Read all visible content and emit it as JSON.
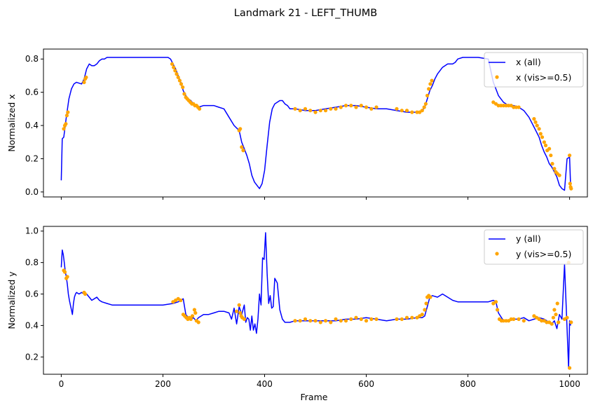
{
  "chart_data": {
    "title": "Landmark 21 - LEFT_THUMB",
    "type": "line",
    "panels": [
      {
        "ylabel": "Normalized x",
        "xlim": [
          -35,
          1035
        ],
        "ylim": [
          -0.03,
          0.86
        ],
        "yticks": [
          0.0,
          0.2,
          0.4,
          0.6,
          0.8
        ],
        "ytick_labels": [
          "0.0",
          "0.2",
          "0.4",
          "0.6",
          "0.8"
        ],
        "xticks": [
          0,
          200,
          400,
          600,
          800,
          1000
        ],
        "legend": {
          "placement": "top-right",
          "entries": [
            "x (all)",
            "x (vis>=0.5)"
          ]
        },
        "series_all": {
          "name": "x (all)",
          "color": "#0000ff",
          "x": [
            0,
            2,
            5,
            10,
            15,
            20,
            25,
            30,
            40,
            45,
            50,
            55,
            60,
            65,
            70,
            75,
            80,
            85,
            90,
            100,
            120,
            150,
            180,
            210,
            215,
            220,
            225,
            230,
            235,
            240,
            245,
            250,
            255,
            260,
            265,
            270,
            280,
            290,
            300,
            310,
            320,
            330,
            340,
            350,
            355,
            360,
            365,
            370,
            375,
            380,
            385,
            390,
            395,
            400,
            405,
            410,
            415,
            420,
            425,
            430,
            435,
            440,
            445,
            450,
            460,
            480,
            500,
            520,
            540,
            560,
            580,
            600,
            620,
            640,
            660,
            680,
            700,
            710,
            715,
            720,
            725,
            730,
            735,
            740,
            745,
            750,
            755,
            760,
            765,
            770,
            775,
            780,
            790,
            800,
            820,
            840,
            845,
            850,
            855,
            860,
            870,
            880,
            890,
            900,
            910,
            920,
            930,
            940,
            945,
            950,
            955,
            960,
            965,
            970,
            975,
            980,
            985,
            990,
            995,
            1000,
            1002
          ],
          "y": [
            0.07,
            0.32,
            0.33,
            0.45,
            0.56,
            0.62,
            0.65,
            0.66,
            0.65,
            0.68,
            0.74,
            0.77,
            0.76,
            0.76,
            0.77,
            0.79,
            0.8,
            0.8,
            0.81,
            0.81,
            0.81,
            0.81,
            0.81,
            0.81,
            0.8,
            0.77,
            0.74,
            0.7,
            0.66,
            0.61,
            0.58,
            0.56,
            0.55,
            0.53,
            0.52,
            0.51,
            0.52,
            0.52,
            0.52,
            0.51,
            0.5,
            0.45,
            0.4,
            0.37,
            0.3,
            0.26,
            0.22,
            0.17,
            0.1,
            0.06,
            0.04,
            0.02,
            0.05,
            0.13,
            0.28,
            0.42,
            0.5,
            0.53,
            0.54,
            0.55,
            0.55,
            0.53,
            0.52,
            0.5,
            0.5,
            0.49,
            0.49,
            0.5,
            0.51,
            0.52,
            0.52,
            0.51,
            0.5,
            0.5,
            0.49,
            0.48,
            0.48,
            0.49,
            0.51,
            0.56,
            0.61,
            0.64,
            0.68,
            0.71,
            0.73,
            0.75,
            0.76,
            0.77,
            0.77,
            0.77,
            0.78,
            0.8,
            0.81,
            0.81,
            0.81,
            0.8,
            0.73,
            0.66,
            0.62,
            0.58,
            0.54,
            0.52,
            0.52,
            0.51,
            0.49,
            0.45,
            0.39,
            0.33,
            0.28,
            0.24,
            0.21,
            0.17,
            0.15,
            0.12,
            0.09,
            0.04,
            0.02,
            0.01,
            0.2,
            0.21,
            0.03
          ]
        },
        "series_vis": {
          "name": "x (vis>=0.5)",
          "color": "#ffa500",
          "x": [
            5,
            7,
            9,
            11,
            13,
            45,
            47,
            49,
            218,
            221,
            224,
            227,
            230,
            233,
            236,
            239,
            242,
            245,
            248,
            251,
            254,
            257,
            260,
            263,
            266,
            269,
            272,
            350,
            352,
            355,
            358,
            460,
            470,
            480,
            490,
            500,
            510,
            520,
            530,
            540,
            550,
            560,
            570,
            580,
            590,
            600,
            610,
            620,
            660,
            670,
            680,
            690,
            700,
            705,
            710,
            714,
            717,
            720,
            723,
            726,
            729,
            850,
            855,
            860,
            865,
            870,
            875,
            880,
            885,
            890,
            895,
            900,
            930,
            933,
            936,
            940,
            943,
            946,
            950,
            953,
            956,
            960,
            963,
            966,
            970,
            973,
            976,
            980,
            1000,
            1001,
            1002,
            1003
          ],
          "y": [
            0.38,
            0.4,
            0.41,
            0.46,
            0.48,
            0.66,
            0.68,
            0.69,
            0.77,
            0.75,
            0.73,
            0.71,
            0.69,
            0.67,
            0.65,
            0.63,
            0.59,
            0.57,
            0.56,
            0.55,
            0.54,
            0.53,
            0.53,
            0.52,
            0.52,
            0.51,
            0.5,
            0.37,
            0.38,
            0.27,
            0.25,
            0.5,
            0.49,
            0.5,
            0.49,
            0.48,
            0.49,
            0.49,
            0.5,
            0.5,
            0.51,
            0.52,
            0.52,
            0.51,
            0.52,
            0.51,
            0.5,
            0.51,
            0.5,
            0.49,
            0.49,
            0.48,
            0.48,
            0.48,
            0.49,
            0.51,
            0.53,
            0.58,
            0.62,
            0.65,
            0.67,
            0.54,
            0.53,
            0.52,
            0.52,
            0.52,
            0.52,
            0.52,
            0.52,
            0.51,
            0.51,
            0.51,
            0.44,
            0.42,
            0.4,
            0.38,
            0.35,
            0.33,
            0.3,
            0.28,
            0.25,
            0.26,
            0.22,
            0.17,
            0.14,
            0.12,
            0.11,
            0.1,
            0.22,
            0.05,
            0.03,
            0.02
          ]
        }
      },
      {
        "ylabel": "Normalized y",
        "xlabel": "Frame",
        "xlim": [
          -35,
          1035
        ],
        "ylim": [
          0.09,
          1.03
        ],
        "yticks": [
          0.2,
          0.4,
          0.6,
          0.8,
          1.0
        ],
        "ytick_labels": [
          "0.2",
          "0.4",
          "0.6",
          "0.8",
          "1.0"
        ],
        "xticks": [
          0,
          200,
          400,
          600,
          800,
          1000
        ],
        "xtick_labels": [
          "0",
          "200",
          "400",
          "600",
          "800",
          "1000"
        ],
        "legend": {
          "placement": "top-right",
          "entries": [
            "y (all)",
            "y (vis>=0.5)"
          ]
        },
        "series_all": {
          "name": "y (all)",
          "color": "#0000ff",
          "x": [
            0,
            2,
            4,
            6,
            8,
            10,
            12,
            14,
            16,
            18,
            20,
            22,
            24,
            26,
            28,
            30,
            35,
            40,
            45,
            50,
            55,
            60,
            65,
            70,
            75,
            80,
            90,
            100,
            150,
            200,
            220,
            230,
            240,
            245,
            250,
            255,
            260,
            265,
            270,
            280,
            290,
            300,
            310,
            320,
            330,
            335,
            340,
            345,
            350,
            355,
            360,
            363,
            366,
            369,
            372,
            375,
            378,
            381,
            384,
            387,
            390,
            393,
            396,
            399,
            402,
            405,
            408,
            411,
            414,
            417,
            420,
            425,
            430,
            435,
            440,
            445,
            450,
            460,
            480,
            500,
            520,
            540,
            560,
            580,
            600,
            620,
            640,
            660,
            680,
            700,
            710,
            715,
            720,
            725,
            730,
            740,
            750,
            760,
            770,
            780,
            800,
            820,
            840,
            850,
            855,
            860,
            870,
            880,
            890,
            900,
            910,
            920,
            930,
            940,
            950,
            960,
            965,
            970,
            975,
            980,
            985,
            990,
            993,
            996,
            998,
            1000,
            1002
          ],
          "y": [
            0.77,
            0.88,
            0.85,
            0.8,
            0.74,
            0.71,
            0.66,
            0.6,
            0.56,
            0.53,
            0.5,
            0.47,
            0.54,
            0.58,
            0.6,
            0.61,
            0.6,
            0.61,
            0.6,
            0.6,
            0.58,
            0.56,
            0.57,
            0.58,
            0.56,
            0.55,
            0.54,
            0.53,
            0.53,
            0.53,
            0.54,
            0.55,
            0.57,
            0.47,
            0.45,
            0.44,
            0.45,
            0.43,
            0.45,
            0.47,
            0.47,
            0.48,
            0.49,
            0.49,
            0.48,
            0.44,
            0.51,
            0.41,
            0.52,
            0.47,
            0.53,
            0.42,
            0.45,
            0.44,
            0.37,
            0.46,
            0.37,
            0.41,
            0.35,
            0.44,
            0.6,
            0.53,
            0.83,
            0.82,
            0.99,
            0.73,
            0.54,
            0.59,
            0.51,
            0.52,
            0.7,
            0.67,
            0.5,
            0.44,
            0.42,
            0.42,
            0.42,
            0.43,
            0.43,
            0.43,
            0.43,
            0.43,
            0.44,
            0.44,
            0.45,
            0.44,
            0.43,
            0.44,
            0.44,
            0.45,
            0.45,
            0.46,
            0.52,
            0.58,
            0.59,
            0.58,
            0.6,
            0.58,
            0.56,
            0.55,
            0.55,
            0.55,
            0.55,
            0.56,
            0.55,
            0.48,
            0.43,
            0.43,
            0.44,
            0.44,
            0.45,
            0.43,
            0.44,
            0.45,
            0.44,
            0.42,
            0.41,
            0.43,
            0.38,
            0.47,
            0.44,
            0.79,
            0.55,
            0.3,
            0.13,
            0.43,
            0.4
          ]
        },
        "series_vis": {
          "name": "y (vis>=0.5)",
          "color": "#ffa500",
          "x": [
            5,
            7,
            10,
            12,
            45,
            47,
            220,
            225,
            230,
            235,
            240,
            243,
            246,
            249,
            252,
            255,
            258,
            262,
            264,
            266,
            270,
            345,
            350,
            352,
            354,
            356,
            360,
            460,
            470,
            480,
            490,
            500,
            510,
            520,
            530,
            540,
            550,
            560,
            570,
            580,
            590,
            600,
            610,
            620,
            660,
            670,
            680,
            690,
            700,
            705,
            710,
            715,
            718,
            720,
            723,
            726,
            850,
            855,
            858,
            862,
            866,
            870,
            875,
            880,
            885,
            890,
            900,
            910,
            930,
            935,
            940,
            945,
            950,
            955,
            960,
            965,
            968,
            970,
            973,
            976,
            978,
            990,
            995,
            998,
            1000,
            1003
          ],
          "y": [
            0.75,
            0.74,
            0.7,
            0.71,
            0.61,
            0.6,
            0.55,
            0.56,
            0.57,
            0.56,
            0.47,
            0.46,
            0.45,
            0.44,
            0.45,
            0.44,
            0.46,
            0.5,
            0.48,
            0.43,
            0.42,
            0.49,
            0.53,
            0.48,
            0.46,
            0.45,
            0.44,
            0.43,
            0.43,
            0.44,
            0.43,
            0.43,
            0.42,
            0.43,
            0.42,
            0.44,
            0.43,
            0.43,
            0.44,
            0.45,
            0.44,
            0.43,
            0.44,
            0.44,
            0.44,
            0.44,
            0.45,
            0.45,
            0.45,
            0.46,
            0.47,
            0.5,
            0.54,
            0.58,
            0.59,
            0.58,
            0.54,
            0.55,
            0.5,
            0.44,
            0.43,
            0.43,
            0.43,
            0.43,
            0.44,
            0.44,
            0.44,
            0.43,
            0.46,
            0.45,
            0.44,
            0.43,
            0.43,
            0.42,
            0.42,
            0.41,
            0.45,
            0.5,
            0.47,
            0.54,
            0.42,
            0.44,
            0.45,
            0.8,
            0.13,
            0.42
          ]
        }
      }
    ]
  }
}
